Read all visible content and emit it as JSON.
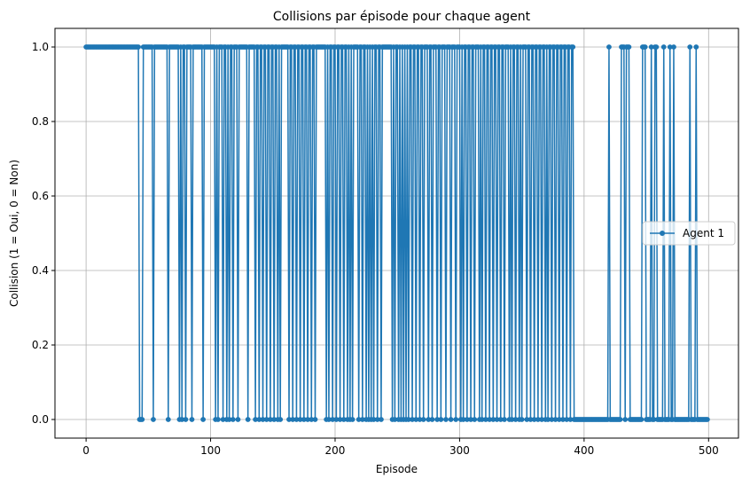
{
  "chart_data": {
    "type": "line",
    "title": "Collisions par épisode pour chaque agent",
    "xlabel": "Episode",
    "ylabel": "Collision (1 = Oui, 0 = Non)",
    "xlim": [
      -25,
      524
    ],
    "ylim": [
      -0.05,
      1.05
    ],
    "xticks": [
      0,
      100,
      200,
      300,
      400,
      500
    ],
    "yticks": [
      0.0,
      0.2,
      0.4,
      0.6,
      0.7999999999999999,
      1.0
    ],
    "ytick_labels": [
      "0.0",
      "0.2",
      "0.4",
      "0.6",
      "0.8",
      "1.0"
    ],
    "grid": true,
    "legend_position": "center-right",
    "series": [
      {
        "name": "Agent 1",
        "color": "#1f77b4",
        "marker": "circle",
        "episodes": 500,
        "zero_episodes": [
          43,
          44,
          45,
          54,
          66,
          75,
          77,
          80,
          85,
          94,
          104,
          106,
          110,
          113,
          115,
          118,
          122,
          130,
          136,
          139,
          142,
          145,
          148,
          151,
          154,
          156,
          163,
          166,
          169,
          172,
          175,
          178,
          181,
          184,
          193,
          195,
          198,
          201,
          204,
          207,
          210,
          212,
          214,
          219,
          222,
          225,
          227,
          229,
          231,
          234,
          237,
          246,
          248,
          251,
          253,
          255,
          257,
          259,
          262,
          265,
          268,
          271,
          275,
          278,
          282,
          285,
          289,
          293,
          297,
          301,
          303,
          306,
          309,
          312,
          316,
          318,
          321,
          324,
          327,
          330,
          333,
          336,
          340,
          342,
          345,
          348,
          350,
          354,
          357,
          360,
          363,
          366,
          369,
          371,
          374,
          377,
          380,
          383,
          386,
          389,
          392,
          393,
          394,
          395,
          396,
          397,
          398,
          399,
          400,
          401,
          402,
          403,
          404,
          405,
          406,
          407,
          408,
          409,
          410,
          411,
          412,
          413,
          414,
          415,
          416,
          417,
          418,
          419,
          421,
          422,
          423,
          424,
          425,
          426,
          427,
          428,
          429,
          433,
          437,
          438,
          439,
          440,
          441,
          442,
          443,
          444,
          445,
          446,
          450,
          451,
          452,
          453,
          455,
          456,
          459,
          460,
          461,
          462,
          463,
          465,
          466,
          467,
          468,
          470,
          471,
          473,
          474,
          475,
          476,
          477,
          478,
          479,
          480,
          481,
          482,
          483,
          484,
          486,
          487,
          488,
          489,
          491,
          492,
          493,
          494,
          495,
          496,
          497,
          498,
          499
        ]
      }
    ]
  }
}
